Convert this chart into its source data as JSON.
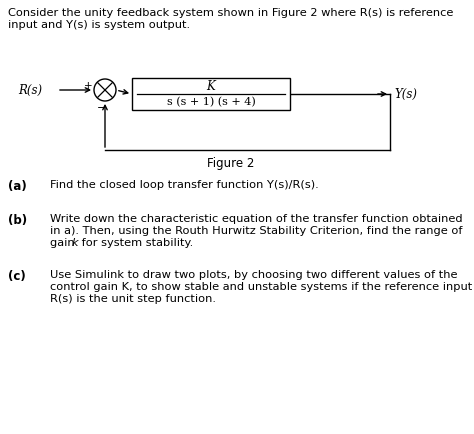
{
  "bg_color": "#ffffff",
  "header_line1": "Consider the unity feedback system shown in Figure 2 where R(s) is reference",
  "header_line2": "input and Y(s) is system output.",
  "figure_label": "Figure 2",
  "Rs_label": "R(s)",
  "Ys_label": "Y(s)",
  "K_num": "K",
  "K_den": "s (s + 1) (s + 4)",
  "part_a_label": "(a)",
  "part_a_text": "Find the closed loop transfer function Y(s)/R(s).",
  "part_b_label": "(b)",
  "part_b_line1": "Write down the characteristic equation of the transfer function obtained",
  "part_b_line2": "in a). Then, using the Routh Hurwitz Stability Criterion, find the range of",
  "part_b_line3": "gain k for system stability.",
  "part_b_line3_italic": "k",
  "part_c_label": "(c)",
  "part_c_line1": "Use Simulink to draw two plots, by choosing two different values of the",
  "part_c_line2": "control gain K, to show stable and unstable systems if the reference input",
  "part_c_line3": "R(s) is the unit step function.",
  "font_size_header": 8.2,
  "font_size_label": 8.5,
  "font_size_text": 8.2,
  "font_size_diagram": 8.5,
  "font_size_figure": 8.5
}
